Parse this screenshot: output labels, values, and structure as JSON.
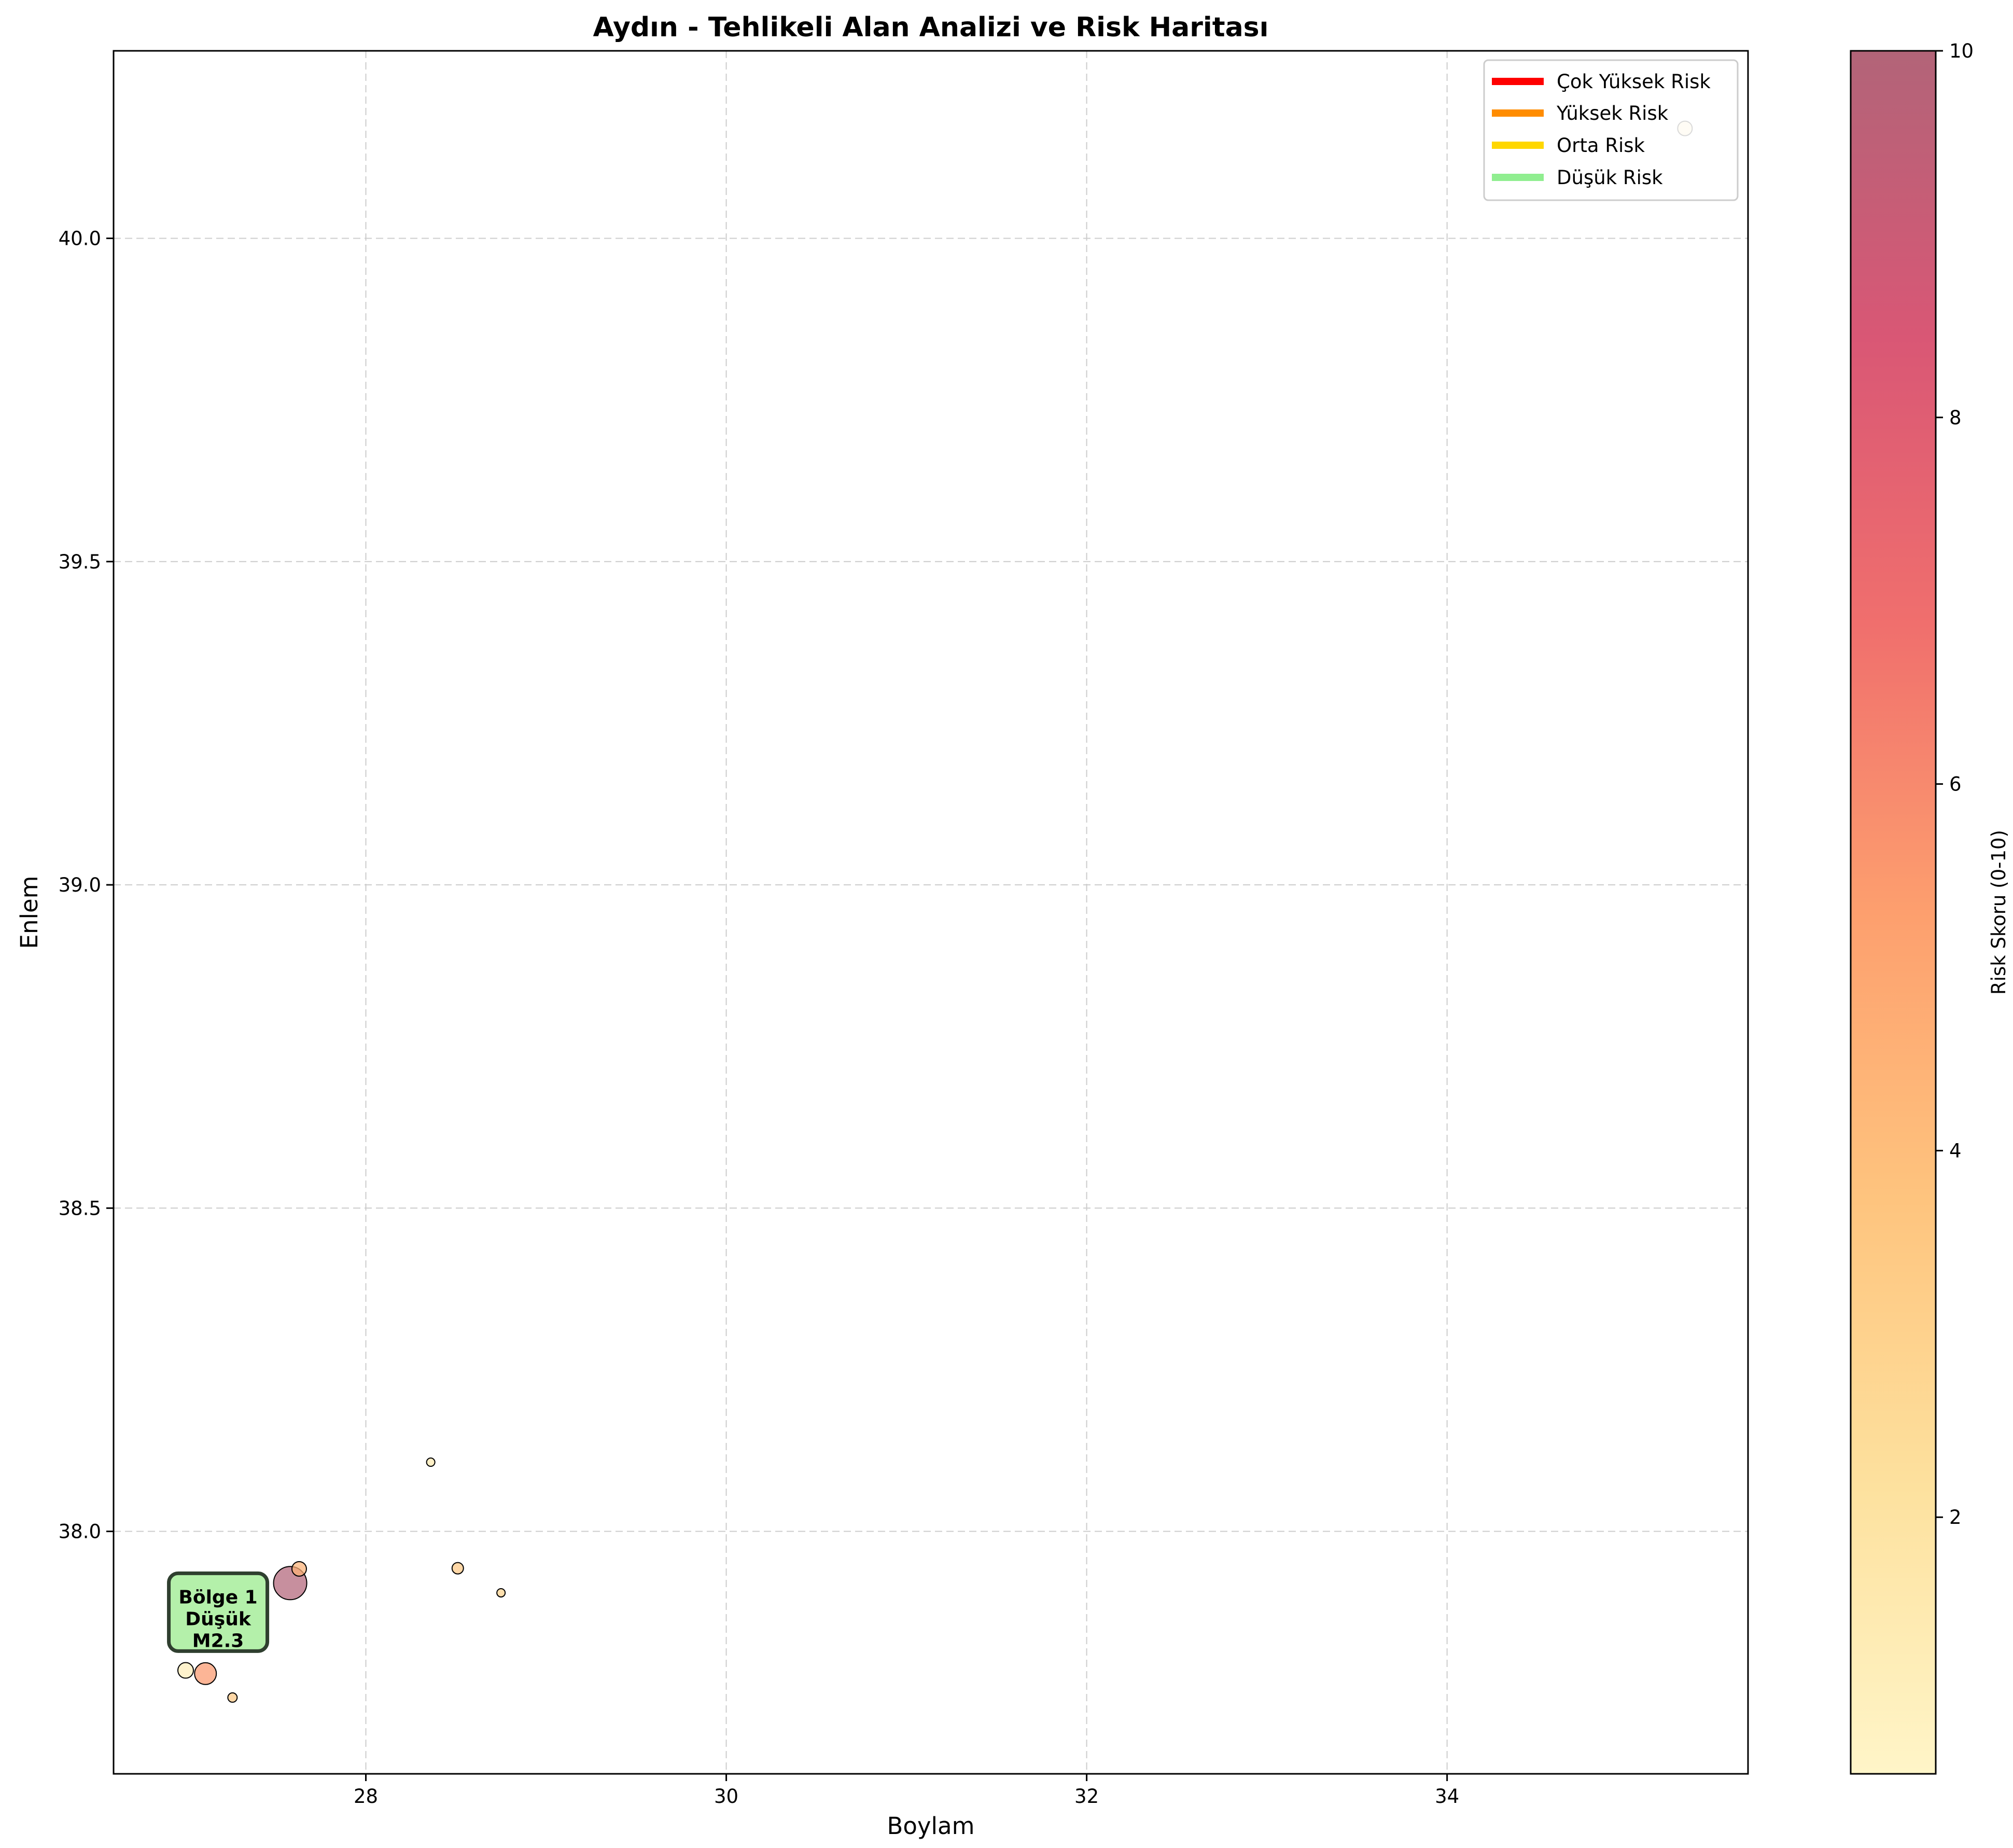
{
  "chart_data": {
    "type": "scatter",
    "title": "Aydın - Tehlikeli Alan Analizi ve Risk Haritası",
    "xlabel": "Boylam",
    "ylabel": "Enlem",
    "xlim": [
      26.6,
      35.67
    ],
    "ylim": [
      37.625,
      40.29
    ],
    "xticks": [
      28,
      30,
      32,
      34
    ],
    "yticks": [
      38.0,
      38.5,
      39.0,
      39.5,
      40.0
    ],
    "xtick_labels": [
      "28",
      "30",
      "32",
      "34"
    ],
    "ytick_labels": [
      "38.0",
      "38.5",
      "39.0",
      "39.5",
      "40.0"
    ],
    "grid": true,
    "points": [
      {
        "x": 35.32,
        "y": 40.17,
        "risk": 2.0,
        "size": 14
      },
      {
        "x": 28.36,
        "y": 38.107,
        "risk": 1.5,
        "size": 8
      },
      {
        "x": 28.51,
        "y": 37.943,
        "risk": 3.5,
        "size": 11
      },
      {
        "x": 28.75,
        "y": 37.905,
        "risk": 3.0,
        "size": 8
      },
      {
        "x": 27.63,
        "y": 37.942,
        "risk": 4.5,
        "size": 14
      },
      {
        "x": 27.58,
        "y": 37.92,
        "risk": 10.0,
        "size": 32
      },
      {
        "x": 27.04,
        "y": 37.863,
        "risk": 1.5,
        "size": 10
      },
      {
        "x": 27.0,
        "y": 37.785,
        "risk": 1.2,
        "size": 15
      },
      {
        "x": 27.11,
        "y": 37.78,
        "risk": 5.5,
        "size": 21
      },
      {
        "x": 27.26,
        "y": 37.743,
        "risk": 3.5,
        "size": 9
      }
    ],
    "annotation": {
      "x": 27.18,
      "y": 37.875,
      "lines": [
        "Bölge 1",
        "Düşük",
        "M2.3"
      ],
      "bg": "#b4f0aa"
    },
    "legend": {
      "position": "top-right",
      "entries": [
        {
          "label": "Çok Yüksek Risk",
          "color": "#ff0000"
        },
        {
          "label": "Yüksek Risk",
          "color": "#ff8c00"
        },
        {
          "label": "Orta Risk",
          "color": "#ffd700"
        },
        {
          "label": "Düşük Risk",
          "color": "#90ee90"
        }
      ]
    },
    "colorbar": {
      "label": "Risk Skoru (0-10)",
      "range": [
        0.6,
        10
      ],
      "ticks": [
        2,
        4,
        6,
        8,
        10
      ],
      "tick_labels": [
        "2",
        "4",
        "6",
        "8",
        "10"
      ],
      "colors": [
        "#fff5c8",
        "#fde19e",
        "#fec47e",
        "#fd9f6e",
        "#f06f6d",
        "#d95775",
        "#b26478"
      ]
    }
  }
}
